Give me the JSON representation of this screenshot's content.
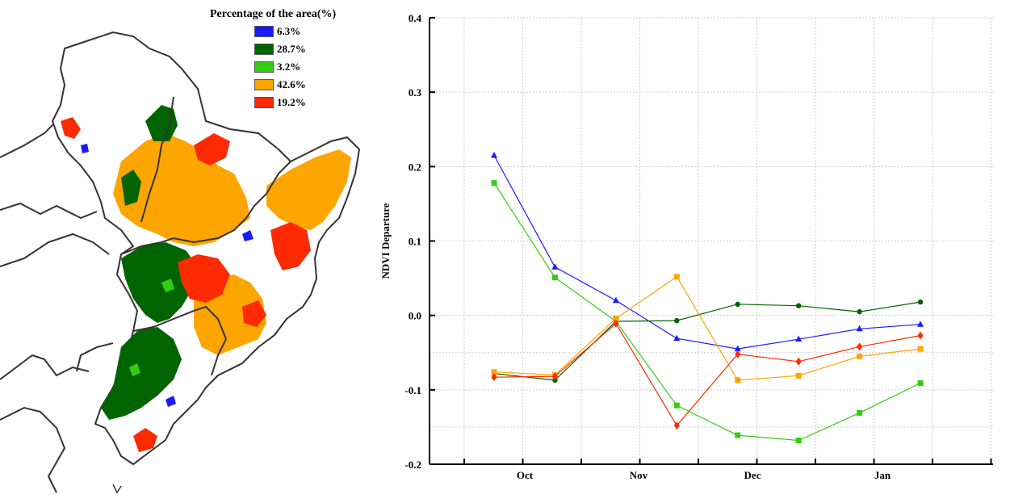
{
  "map": {
    "legend": {
      "title": "Percentage of the area(%)",
      "items": [
        {
          "label": "6.3%",
          "color": "#1a1aff"
        },
        {
          "label": "28.7%",
          "color": "#006400"
        },
        {
          "label": "3.2%",
          "color": "#33cc11"
        },
        {
          "label": "42.6%",
          "color": "#ffa500"
        },
        {
          "label": "19.2%",
          "color": "#ff2a00"
        }
      ]
    }
  },
  "chart_data": {
    "type": "line",
    "title": "",
    "xlabel": "",
    "ylabel": "NDVI Departure",
    "ylim": [
      -0.2,
      0.4
    ],
    "yticks": [
      "0.4",
      "0.3",
      "0.2",
      "0.1",
      "0.0",
      "-0.1",
      "-0.2"
    ],
    "month_labels": [
      "Oct",
      "Nov",
      "Dec",
      "Jan"
    ],
    "grid": true,
    "series": [
      {
        "color": "#1a1aff",
        "marker": "triangle",
        "values": [
          0.215,
          0.065,
          0.02,
          -0.031,
          -0.045,
          -0.032,
          -0.018,
          -0.012
        ]
      },
      {
        "color": "#006400",
        "marker": "circle",
        "values": [
          -0.078,
          -0.087,
          -0.008,
          -0.007,
          0.015,
          0.013,
          0.005,
          0.018
        ]
      },
      {
        "color": "#33cc11",
        "marker": "square",
        "values": [
          0.178,
          0.051,
          -0.008,
          -0.121,
          -0.161,
          -0.168,
          -0.131,
          -0.091
        ]
      },
      {
        "color": "#ffa500",
        "marker": "square",
        "values": [
          -0.076,
          -0.08,
          -0.004,
          0.052,
          -0.087,
          -0.081,
          -0.055,
          -0.045
        ]
      },
      {
        "color": "#ff2a00",
        "marker": "diamond",
        "values": [
          -0.083,
          -0.082,
          -0.011,
          -0.148,
          -0.052,
          -0.062,
          -0.042,
          -0.027
        ]
      }
    ]
  }
}
